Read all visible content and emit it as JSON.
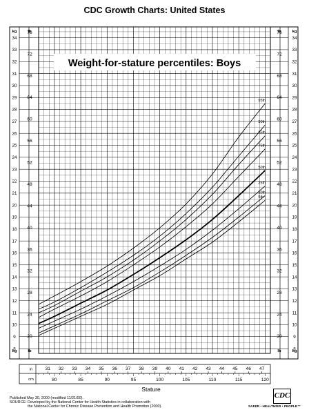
{
  "header": {
    "title": "CDC Growth Charts: United States"
  },
  "footer": {
    "published": "Published May 30, 2000 (modified 11/21/00).",
    "source_line1": "SOURCE: Developed by the National Center for Health Statistics in collaboration with",
    "source_line2": "the National Center for Chronic Disease Prevention and Health Promotion (2000).",
    "logo_text": "CDC",
    "tagline": "SAFER • HEALTHIER • PEOPLE™"
  },
  "chart_data": {
    "type": "line",
    "title": "Weight-for-stature percentiles: Boys",
    "xlabel": "Stature",
    "x_cm_label": "cm",
    "x_in_label": "in",
    "y_left_unit_kg": "kg",
    "y_left_unit_lb": "lb",
    "y_right_unit_kg": "kg",
    "y_right_unit_lb": "lb",
    "xlim_cm": [
      77,
      121
    ],
    "ylim_kg": [
      7.6,
      34.9
    ],
    "cm_ticks": [
      "80",
      "85",
      "90",
      "95",
      "100",
      "105",
      "110",
      "115",
      "120"
    ],
    "in_ticks": [
      "31",
      "32",
      "33",
      "34",
      "35",
      "36",
      "37",
      "38",
      "39",
      "40",
      "41",
      "42",
      "43",
      "44",
      "45",
      "46",
      "47"
    ],
    "kg_ticks": [
      "8",
      "9",
      "10",
      "11",
      "12",
      "13",
      "14",
      "15",
      "16",
      "17",
      "18",
      "19",
      "20",
      "21",
      "22",
      "23",
      "24",
      "25",
      "26",
      "27",
      "28",
      "29",
      "30",
      "31",
      "32",
      "33",
      "34"
    ],
    "lb_ticks": [
      "20",
      "24",
      "28",
      "32",
      "36",
      "40",
      "44",
      "48",
      "52",
      "56",
      "60",
      "64",
      "68",
      "72",
      "76"
    ],
    "grid": true,
    "x": [
      77,
      80,
      85,
      90,
      95,
      100,
      105,
      110,
      115,
      120
    ],
    "series": [
      {
        "name": "95th",
        "values": [
          11.7,
          12.4,
          13.6,
          14.9,
          16.4,
          18.1,
          20.1,
          22.6,
          25.7,
          28.5
        ]
      },
      {
        "name": "90th",
        "values": [
          11.3,
          11.9,
          13.1,
          14.4,
          15.8,
          17.4,
          19.3,
          21.5,
          24.1,
          26.7
        ]
      },
      {
        "name": "85th",
        "values": [
          11.0,
          11.6,
          12.8,
          14.0,
          15.4,
          17.0,
          18.8,
          20.9,
          23.4,
          25.8
        ]
      },
      {
        "name": "75th",
        "values": [
          10.6,
          11.3,
          12.4,
          13.6,
          15.0,
          16.5,
          18.2,
          20.1,
          22.4,
          24.7
        ]
      },
      {
        "name": "50th",
        "values": [
          10.1,
          10.7,
          11.8,
          12.9,
          14.2,
          15.6,
          17.1,
          18.8,
          20.8,
          22.9
        ]
      },
      {
        "name": "25th",
        "values": [
          9.7,
          10.3,
          11.3,
          12.4,
          13.6,
          14.9,
          16.3,
          17.9,
          19.7,
          21.6
        ]
      },
      {
        "name": "10th",
        "values": [
          9.3,
          9.9,
          10.9,
          12.0,
          13.1,
          14.4,
          15.8,
          17.3,
          19.0,
          20.8
        ]
      },
      {
        "name": "5th",
        "values": [
          9.1,
          9.7,
          10.7,
          11.7,
          12.9,
          14.1,
          15.5,
          16.9,
          18.6,
          20.4
        ]
      }
    ]
  }
}
